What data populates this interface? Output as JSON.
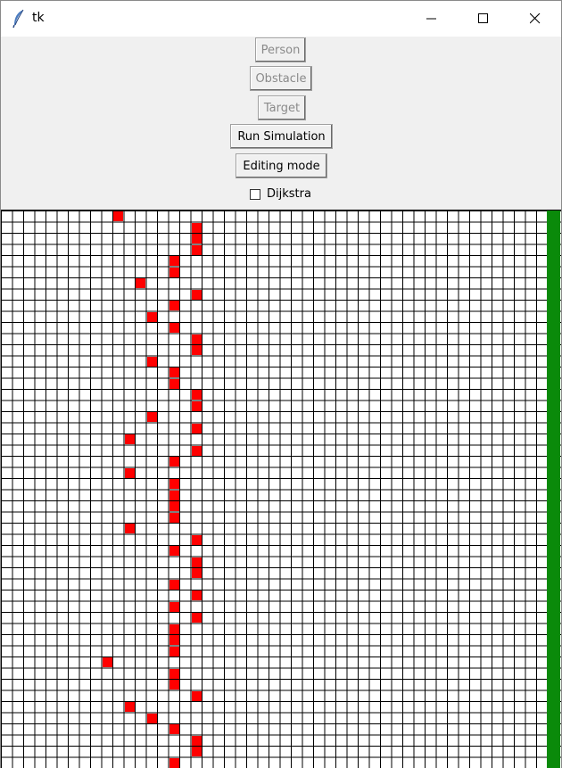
{
  "window": {
    "title": "tk",
    "icon": "feather-icon",
    "controls": [
      "minimize-icon",
      "maximize-icon",
      "close-icon"
    ]
  },
  "toolbar": {
    "person_label": "Person",
    "obstacle_label": "Obstacle",
    "target_label": "Target",
    "run_label": "Run Simulation",
    "edit_label": "Editing mode",
    "dijkstra_label": "Dijkstra",
    "dijkstra_checked": false
  },
  "grid": {
    "columns": 50,
    "rows": 50,
    "person_color": "#ff0000",
    "target_color": "#0a8a0a",
    "line_color": "#000000",
    "persons": [
      [
        10,
        0
      ],
      [
        17,
        1
      ],
      [
        17,
        2
      ],
      [
        17,
        3
      ],
      [
        15,
        4
      ],
      [
        15,
        5
      ],
      [
        12,
        6
      ],
      [
        17,
        7
      ],
      [
        15,
        8
      ],
      [
        13,
        9
      ],
      [
        15,
        10
      ],
      [
        17,
        11
      ],
      [
        17,
        12
      ],
      [
        13,
        13
      ],
      [
        15,
        14
      ],
      [
        15,
        15
      ],
      [
        17,
        16
      ],
      [
        17,
        17
      ],
      [
        13,
        18
      ],
      [
        17,
        19
      ],
      [
        11,
        20
      ],
      [
        17,
        21
      ],
      [
        15,
        22
      ],
      [
        11,
        23
      ],
      [
        15,
        24
      ],
      [
        15,
        25
      ],
      [
        15,
        26
      ],
      [
        15,
        27
      ],
      [
        11,
        28
      ],
      [
        17,
        29
      ],
      [
        15,
        30
      ],
      [
        17,
        31
      ],
      [
        17,
        32
      ],
      [
        15,
        33
      ],
      [
        17,
        34
      ],
      [
        15,
        35
      ],
      [
        17,
        36
      ],
      [
        15,
        37
      ],
      [
        15,
        38
      ],
      [
        15,
        39
      ],
      [
        9,
        40
      ],
      [
        15,
        41
      ],
      [
        15,
        42
      ],
      [
        17,
        43
      ],
      [
        11,
        44
      ],
      [
        13,
        45
      ],
      [
        15,
        46
      ],
      [
        17,
        47
      ],
      [
        17,
        48
      ],
      [
        15,
        49
      ]
    ],
    "target_column": 49
  }
}
